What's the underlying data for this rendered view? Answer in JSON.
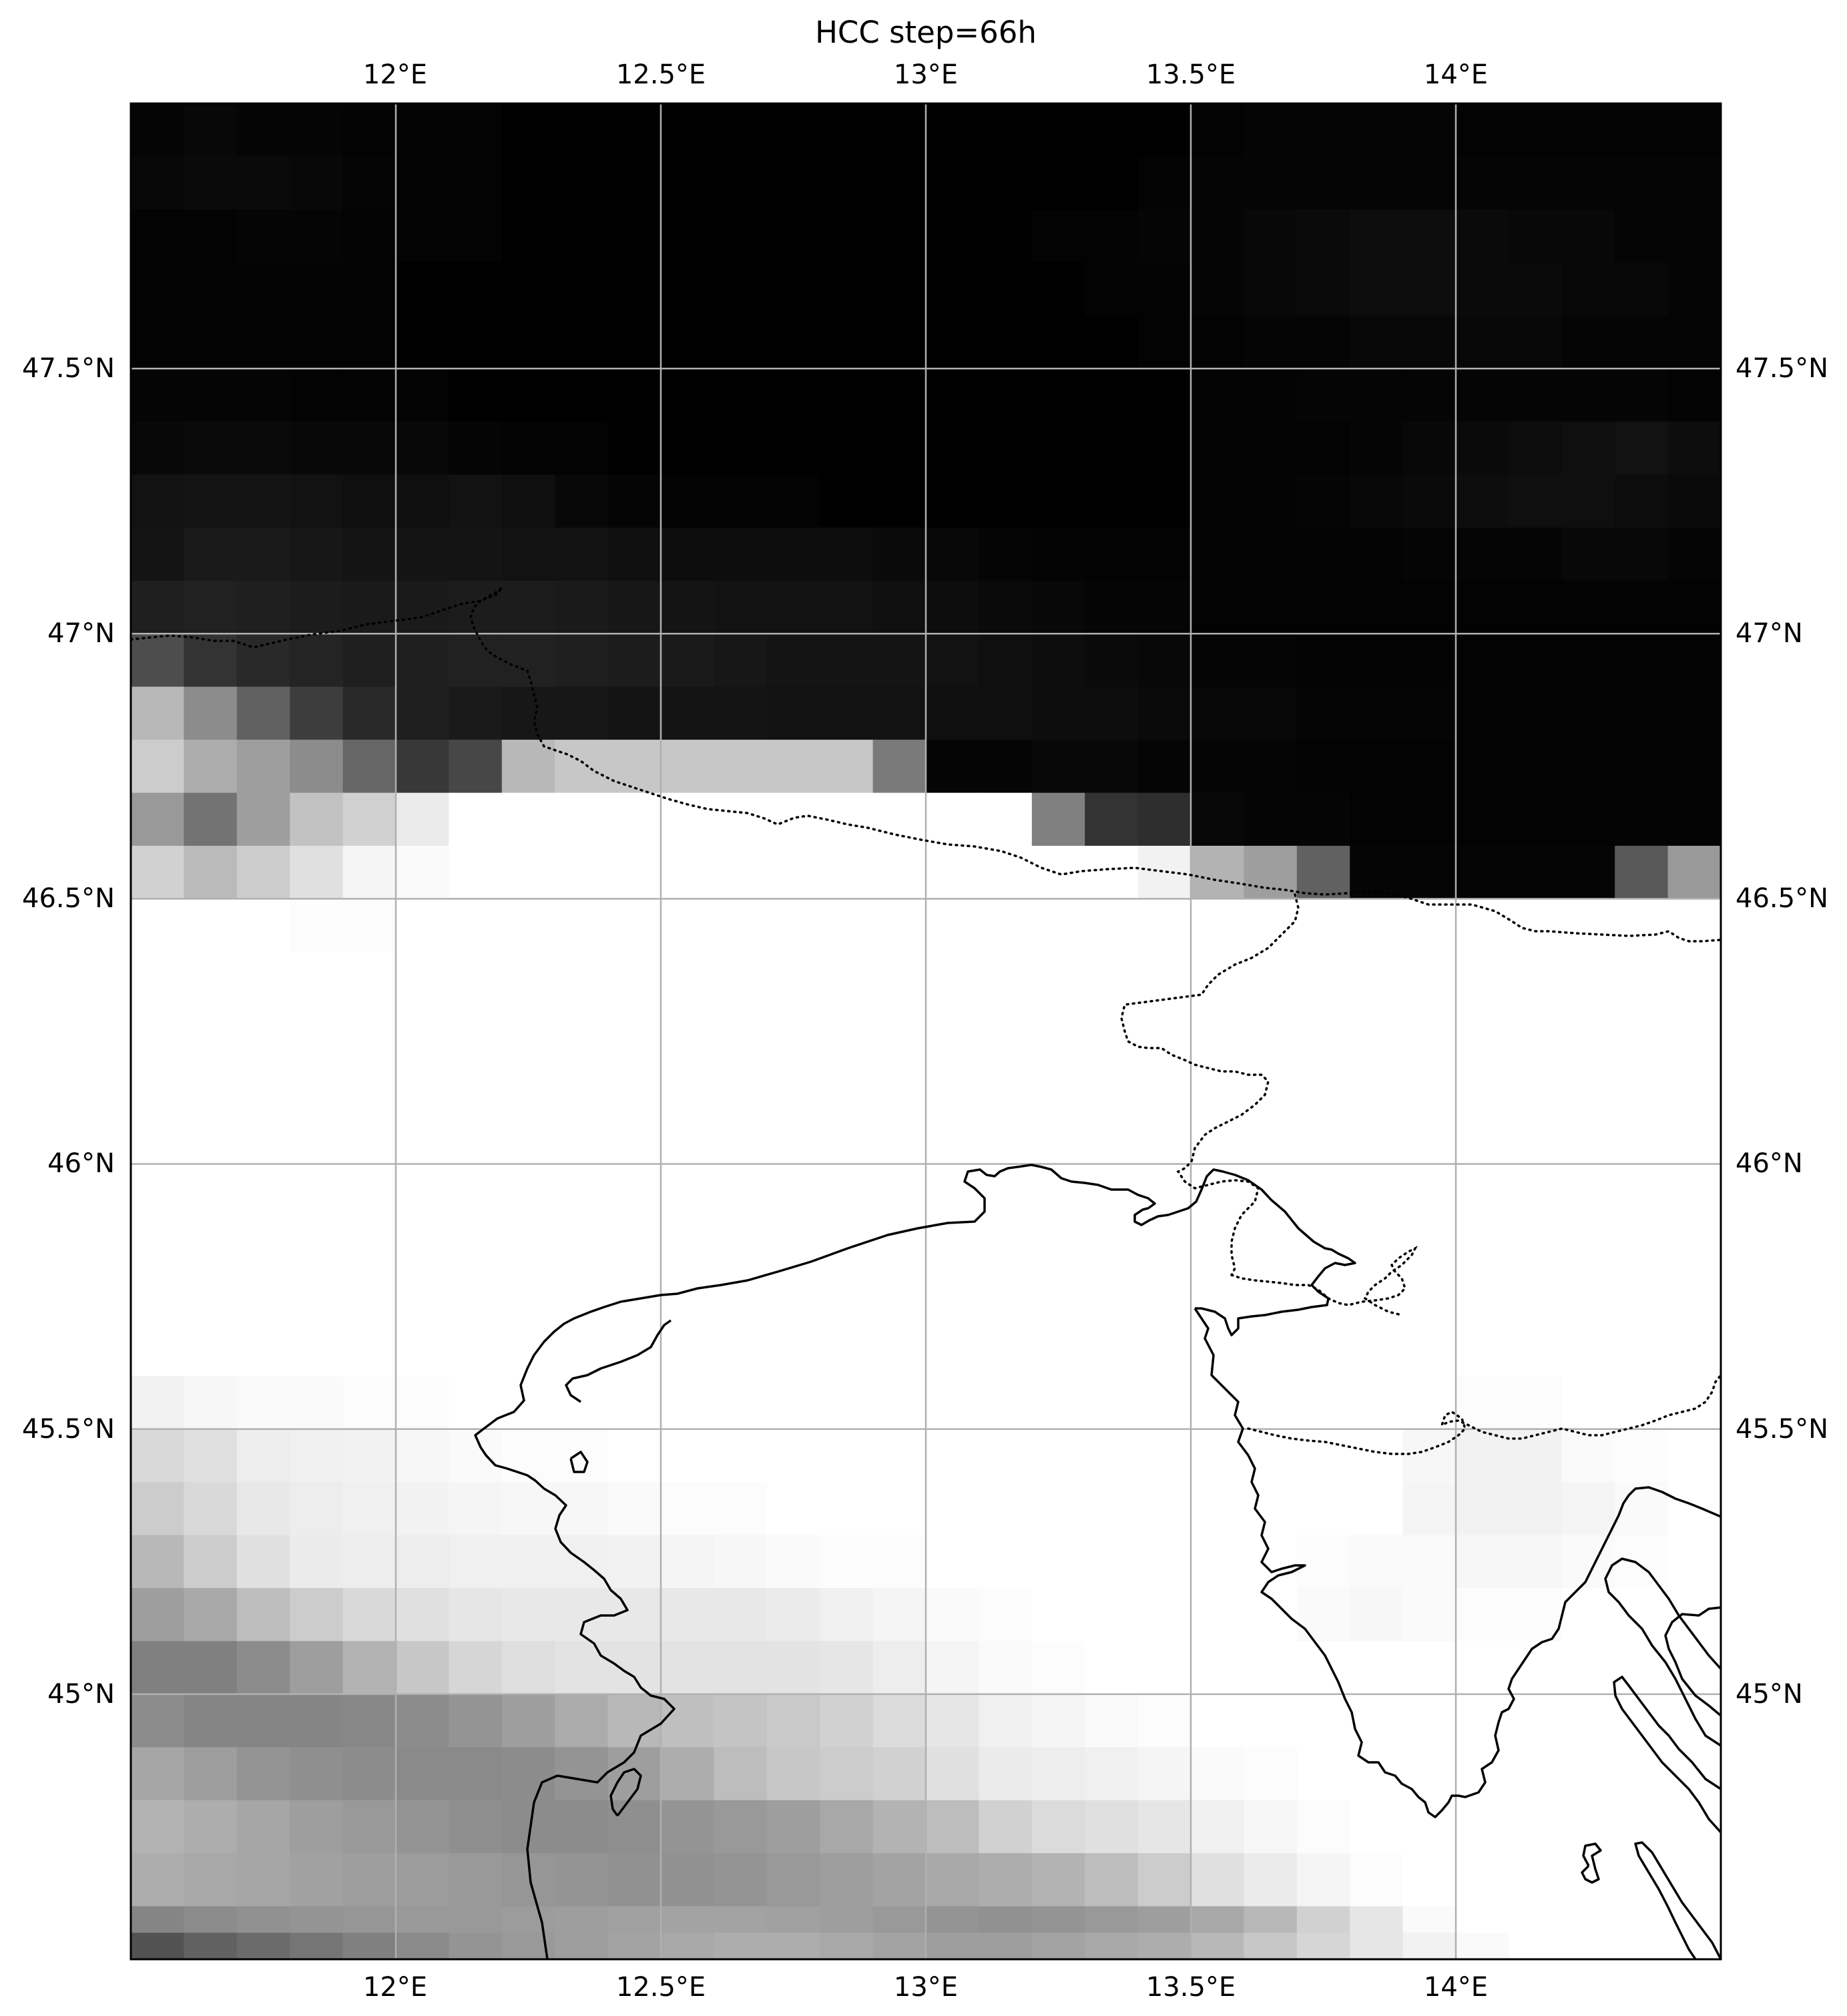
{
  "title": "HCC step=66h",
  "lon_ticks": [
    "12°E",
    "12.5°E",
    "13°E",
    "13.5°E",
    "14°E"
  ],
  "lat_ticks": [
    "47.5°N",
    "47°N",
    "46.5°N",
    "46°N",
    "45.5°N",
    "45°N"
  ],
  "chart_data": {
    "type": "heatmap",
    "title": "HCC step=66h",
    "variable": "HCC",
    "colormap": "greys",
    "xlim": [
      11.5,
      14.5
    ],
    "ylim": [
      44.5,
      48.0
    ],
    "lon_ticks": [
      12.0,
      12.5,
      13.0,
      13.5,
      14.0
    ],
    "lat_ticks": [
      47.5,
      47.0,
      46.5,
      46.0,
      45.5,
      45.0
    ],
    "grid": true,
    "cell_size_deg": 0.1,
    "x": [
      11.55,
      11.65,
      11.75,
      11.85,
      11.95,
      12.05,
      12.15,
      12.25,
      12.35,
      12.45,
      12.55,
      12.65,
      12.75,
      12.85,
      12.95,
      13.05,
      13.15,
      13.25,
      13.35,
      13.45,
      13.55,
      13.65,
      13.75,
      13.85,
      13.95,
      14.05,
      14.15,
      14.25,
      14.35,
      14.45
    ],
    "lat_bands": [
      {
        "lat": 47.95,
        "values": [
          0.02,
          0.03,
          0.02,
          0.02,
          0.01,
          0.01,
          0.01,
          0.0,
          0.0,
          0.0,
          0.0,
          0.0,
          0.0,
          0.0,
          0.0,
          0.0,
          0.0,
          0.0,
          0.0,
          0.0,
          0.01,
          0.02,
          0.02,
          0.02,
          0.02,
          0.01,
          0.01,
          0.01,
          0.01,
          0.01
        ]
      },
      {
        "lat": 47.85,
        "values": [
          0.03,
          0.04,
          0.04,
          0.03,
          0.02,
          0.01,
          0.01,
          0.0,
          0.0,
          0.0,
          0.0,
          0.0,
          0.0,
          0.0,
          0.0,
          0.0,
          0.0,
          0.0,
          0.0,
          0.01,
          0.02,
          0.02,
          0.02,
          0.02,
          0.02,
          0.02,
          0.02,
          0.02,
          0.02,
          0.02
        ]
      },
      {
        "lat": 47.75,
        "values": [
          0.01,
          0.01,
          0.02,
          0.02,
          0.01,
          0.01,
          0.01,
          0.0,
          0.0,
          0.0,
          0.0,
          0.0,
          0.0,
          0.0,
          0.0,
          0.0,
          0.0,
          0.01,
          0.01,
          0.02,
          0.02,
          0.03,
          0.04,
          0.05,
          0.05,
          0.04,
          0.03,
          0.03,
          0.02,
          0.02
        ]
      },
      {
        "lat": 47.65,
        "values": [
          0.01,
          0.01,
          0.01,
          0.01,
          0.01,
          0.0,
          0.0,
          0.0,
          0.0,
          0.0,
          0.0,
          0.0,
          0.0,
          0.0,
          0.0,
          0.0,
          0.0,
          0.0,
          0.01,
          0.01,
          0.02,
          0.03,
          0.04,
          0.05,
          0.05,
          0.04,
          0.04,
          0.03,
          0.03,
          0.02
        ]
      },
      {
        "lat": 47.55,
        "values": [
          0.01,
          0.01,
          0.01,
          0.01,
          0.01,
          0.0,
          0.0,
          0.0,
          0.0,
          0.0,
          0.0,
          0.0,
          0.0,
          0.0,
          0.0,
          0.0,
          0.0,
          0.0,
          0.0,
          0.01,
          0.01,
          0.02,
          0.02,
          0.03,
          0.03,
          0.03,
          0.03,
          0.02,
          0.02,
          0.02
        ]
      },
      {
        "lat": 47.45,
        "values": [
          0.02,
          0.02,
          0.02,
          0.01,
          0.01,
          0.01,
          0.0,
          0.0,
          0.0,
          0.0,
          0.0,
          0.0,
          0.0,
          0.0,
          0.0,
          0.0,
          0.0,
          0.0,
          0.0,
          0.0,
          0.01,
          0.01,
          0.02,
          0.02,
          0.02,
          0.02,
          0.02,
          0.02,
          0.02,
          0.01
        ]
      },
      {
        "lat": 47.35,
        "values": [
          0.03,
          0.04,
          0.04,
          0.03,
          0.03,
          0.03,
          0.02,
          0.01,
          0.01,
          0.0,
          0.0,
          0.0,
          0.0,
          0.0,
          0.0,
          0.0,
          0.0,
          0.0,
          0.0,
          0.0,
          0.01,
          0.01,
          0.01,
          0.02,
          0.03,
          0.04,
          0.05,
          0.06,
          0.07,
          0.05
        ]
      },
      {
        "lat": 47.25,
        "values": [
          0.07,
          0.08,
          0.08,
          0.07,
          0.06,
          0.06,
          0.07,
          0.06,
          0.03,
          0.02,
          0.01,
          0.01,
          0.01,
          0.0,
          0.0,
          0.0,
          0.0,
          0.0,
          0.0,
          0.0,
          0.01,
          0.01,
          0.02,
          0.03,
          0.04,
          0.05,
          0.06,
          0.06,
          0.05,
          0.04
        ]
      },
      {
        "lat": 47.15,
        "values": [
          0.08,
          0.1,
          0.1,
          0.09,
          0.08,
          0.08,
          0.08,
          0.07,
          0.07,
          0.06,
          0.05,
          0.05,
          0.05,
          0.05,
          0.04,
          0.03,
          0.02,
          0.01,
          0.01,
          0.01,
          0.01,
          0.01,
          0.01,
          0.01,
          0.02,
          0.02,
          0.02,
          0.03,
          0.03,
          0.02
        ]
      },
      {
        "lat": 47.05,
        "values": [
          0.12,
          0.13,
          0.12,
          0.11,
          0.1,
          0.1,
          0.11,
          0.11,
          0.1,
          0.09,
          0.08,
          0.07,
          0.07,
          0.07,
          0.06,
          0.05,
          0.04,
          0.03,
          0.02,
          0.02,
          0.01,
          0.01,
          0.01,
          0.01,
          0.01,
          0.01,
          0.01,
          0.01,
          0.01,
          0.01
        ]
      },
      {
        "lat": 46.95,
        "values": [
          0.3,
          0.2,
          0.16,
          0.14,
          0.12,
          0.12,
          0.13,
          0.13,
          0.12,
          0.11,
          0.1,
          0.09,
          0.08,
          0.08,
          0.08,
          0.07,
          0.06,
          0.05,
          0.04,
          0.03,
          0.02,
          0.02,
          0.01,
          0.01,
          0.01,
          0.01,
          0.01,
          0.01,
          0.01,
          0.01
        ]
      },
      {
        "lat": 46.85,
        "values": [
          0.72,
          0.55,
          0.38,
          0.24,
          0.16,
          0.12,
          0.1,
          0.09,
          0.09,
          0.08,
          0.08,
          0.08,
          0.07,
          0.07,
          0.07,
          0.06,
          0.06,
          0.05,
          0.05,
          0.04,
          0.03,
          0.03,
          0.02,
          0.02,
          0.02,
          0.01,
          0.01,
          0.01,
          0.01,
          0.01
        ]
      },
      {
        "lat": 46.75,
        "values": [
          0.8,
          0.68,
          0.62,
          0.55,
          0.4,
          0.22,
          0.28,
          0.72,
          0.78,
          0.78,
          0.78,
          0.78,
          0.78,
          0.78,
          0.48,
          0.02,
          0.02,
          0.03,
          0.03,
          0.02,
          0.02,
          0.02,
          0.01,
          0.01,
          0.01,
          0.01,
          0.01,
          0.01,
          0.01,
          0.01
        ]
      },
      {
        "lat": 46.65,
        "values": [
          0.6,
          0.45,
          0.62,
          0.76,
          0.82,
          0.92,
          1.0,
          1.0,
          1.0,
          1.0,
          1.0,
          1.0,
          1.0,
          1.0,
          1.0,
          1.0,
          1.0,
          0.5,
          0.2,
          0.18,
          0.03,
          0.02,
          0.02,
          0.01,
          0.01,
          0.01,
          0.01,
          0.01,
          0.01,
          0.01
        ]
      },
      {
        "lat": 46.55,
        "values": [
          0.82,
          0.73,
          0.8,
          0.88,
          0.96,
          0.98,
          1.0,
          1.0,
          1.0,
          1.0,
          1.0,
          1.0,
          1.0,
          1.0,
          1.0,
          1.0,
          1.0,
          1.0,
          1.0,
          0.95,
          0.7,
          0.62,
          0.38,
          0.02,
          0.02,
          0.02,
          0.02,
          0.02,
          0.35,
          0.6
        ]
      },
      {
        "lat": 46.45,
        "values": [
          1.0,
          1.0,
          1.0,
          0.99,
          0.99,
          1.0,
          1.0,
          1.0,
          1.0,
          1.0,
          1.0,
          1.0,
          1.0,
          1.0,
          1.0,
          1.0,
          1.0,
          1.0,
          1.0,
          1.0,
          1.0,
          1.0,
          1.0,
          1.0,
          1.0,
          1.0,
          1.0,
          1.0,
          1.0,
          1.0
        ]
      },
      {
        "lat": 45.55,
        "values": [
          0.95,
          0.97,
          0.98,
          0.98,
          0.99,
          0.99,
          1.0,
          1.0,
          1.0,
          1.0,
          1.0,
          1.0,
          1.0,
          1.0,
          1.0,
          1.0,
          1.0,
          1.0,
          1.0,
          1.0,
          1.0,
          1.0,
          1.0,
          1.0,
          1.0,
          0.99,
          0.99,
          1.0,
          1.0,
          1.0
        ]
      },
      {
        "lat": 45.45,
        "values": [
          0.85,
          0.88,
          0.93,
          0.94,
          0.95,
          0.97,
          0.98,
          0.99,
          0.99,
          1.0,
          1.0,
          1.0,
          1.0,
          1.0,
          1.0,
          1.0,
          1.0,
          1.0,
          1.0,
          1.0,
          1.0,
          1.0,
          1.0,
          1.0,
          0.97,
          0.95,
          0.95,
          0.98,
          0.99,
          1.0
        ]
      },
      {
        "lat": 45.35,
        "values": [
          0.8,
          0.85,
          0.91,
          0.93,
          0.94,
          0.95,
          0.96,
          0.97,
          0.97,
          0.98,
          0.99,
          0.99,
          1.0,
          1.0,
          1.0,
          1.0,
          1.0,
          1.0,
          1.0,
          1.0,
          1.0,
          1.0,
          1.0,
          1.0,
          0.96,
          0.95,
          0.95,
          0.96,
          0.98,
          1.0
        ]
      },
      {
        "lat": 45.25,
        "values": [
          0.72,
          0.8,
          0.88,
          0.92,
          0.93,
          0.93,
          0.94,
          0.94,
          0.94,
          0.95,
          0.96,
          0.97,
          0.98,
          0.99,
          0.99,
          1.0,
          1.0,
          1.0,
          1.0,
          1.0,
          1.0,
          1.0,
          0.99,
          0.98,
          0.98,
          0.97,
          0.97,
          0.98,
          0.99,
          1.0
        ]
      },
      {
        "lat": 45.15,
        "values": [
          0.62,
          0.66,
          0.74,
          0.8,
          0.85,
          0.88,
          0.9,
          0.91,
          0.91,
          0.91,
          0.91,
          0.91,
          0.92,
          0.94,
          0.96,
          0.98,
          0.99,
          1.0,
          1.0,
          1.0,
          1.0,
          1.0,
          0.98,
          0.97,
          0.98,
          0.99,
          0.99,
          1.0,
          1.0,
          1.0
        ]
      },
      {
        "lat": 45.05,
        "values": [
          0.5,
          0.5,
          0.55,
          0.62,
          0.7,
          0.78,
          0.84,
          0.87,
          0.89,
          0.89,
          0.89,
          0.89,
          0.89,
          0.9,
          0.93,
          0.96,
          0.98,
          0.99,
          1.0,
          1.0,
          1.0,
          1.0,
          1.0,
          1.0,
          1.0,
          1.0,
          1.0,
          1.0,
          1.0,
          1.0
        ]
      },
      {
        "lat": 44.95,
        "values": [
          0.55,
          0.52,
          0.52,
          0.52,
          0.53,
          0.55,
          0.58,
          0.62,
          0.67,
          0.72,
          0.75,
          0.77,
          0.79,
          0.82,
          0.86,
          0.9,
          0.94,
          0.96,
          0.98,
          0.99,
          1.0,
          1.0,
          1.0,
          1.0,
          1.0,
          1.0,
          1.0,
          1.0,
          1.0,
          1.0
        ]
      },
      {
        "lat": 44.85,
        "values": [
          0.65,
          0.62,
          0.58,
          0.56,
          0.55,
          0.54,
          0.54,
          0.55,
          0.58,
          0.62,
          0.68,
          0.74,
          0.78,
          0.8,
          0.82,
          0.88,
          0.92,
          0.93,
          0.94,
          0.96,
          0.98,
          0.99,
          1.0,
          1.0,
          1.0,
          1.0,
          1.0,
          1.0,
          1.0,
          1.0
        ]
      },
      {
        "lat": 44.75,
        "values": [
          0.7,
          0.68,
          0.65,
          0.62,
          0.6,
          0.58,
          0.56,
          0.55,
          0.55,
          0.56,
          0.58,
          0.6,
          0.62,
          0.66,
          0.7,
          0.74,
          0.82,
          0.86,
          0.88,
          0.9,
          0.94,
          0.97,
          0.99,
          1.0,
          1.0,
          1.0,
          1.0,
          1.0,
          1.0,
          1.0
        ]
      },
      {
        "lat": 44.65,
        "values": [
          0.68,
          0.66,
          0.65,
          0.63,
          0.62,
          0.61,
          0.6,
          0.59,
          0.58,
          0.57,
          0.57,
          0.58,
          0.6,
          0.62,
          0.64,
          0.66,
          0.68,
          0.7,
          0.74,
          0.8,
          0.88,
          0.92,
          0.96,
          0.99,
          1.0,
          1.0,
          1.0,
          1.0,
          1.0,
          1.0
        ]
      },
      {
        "lat": 44.55,
        "values": [
          0.52,
          0.55,
          0.57,
          0.58,
          0.59,
          0.6,
          0.6,
          0.61,
          0.62,
          0.63,
          0.64,
          0.64,
          0.63,
          0.62,
          0.6,
          0.58,
          0.57,
          0.58,
          0.6,
          0.62,
          0.66,
          0.72,
          0.82,
          0.9,
          0.98,
          1.0,
          1.0,
          1.0,
          1.0,
          1.0
        ]
      },
      {
        "lat": 44.5,
        "values": [
          0.32,
          0.38,
          0.42,
          0.46,
          0.5,
          0.54,
          0.58,
          0.6,
          0.62,
          0.64,
          0.66,
          0.68,
          0.68,
          0.66,
          0.64,
          0.62,
          0.62,
          0.64,
          0.66,
          0.68,
          0.72,
          0.78,
          0.84,
          0.9,
          0.95,
          0.98,
          1.0,
          1.0,
          1.0,
          1.0
        ]
      }
    ],
    "features": [
      "coastline",
      "national borders (dotted)",
      "gridlines"
    ]
  }
}
